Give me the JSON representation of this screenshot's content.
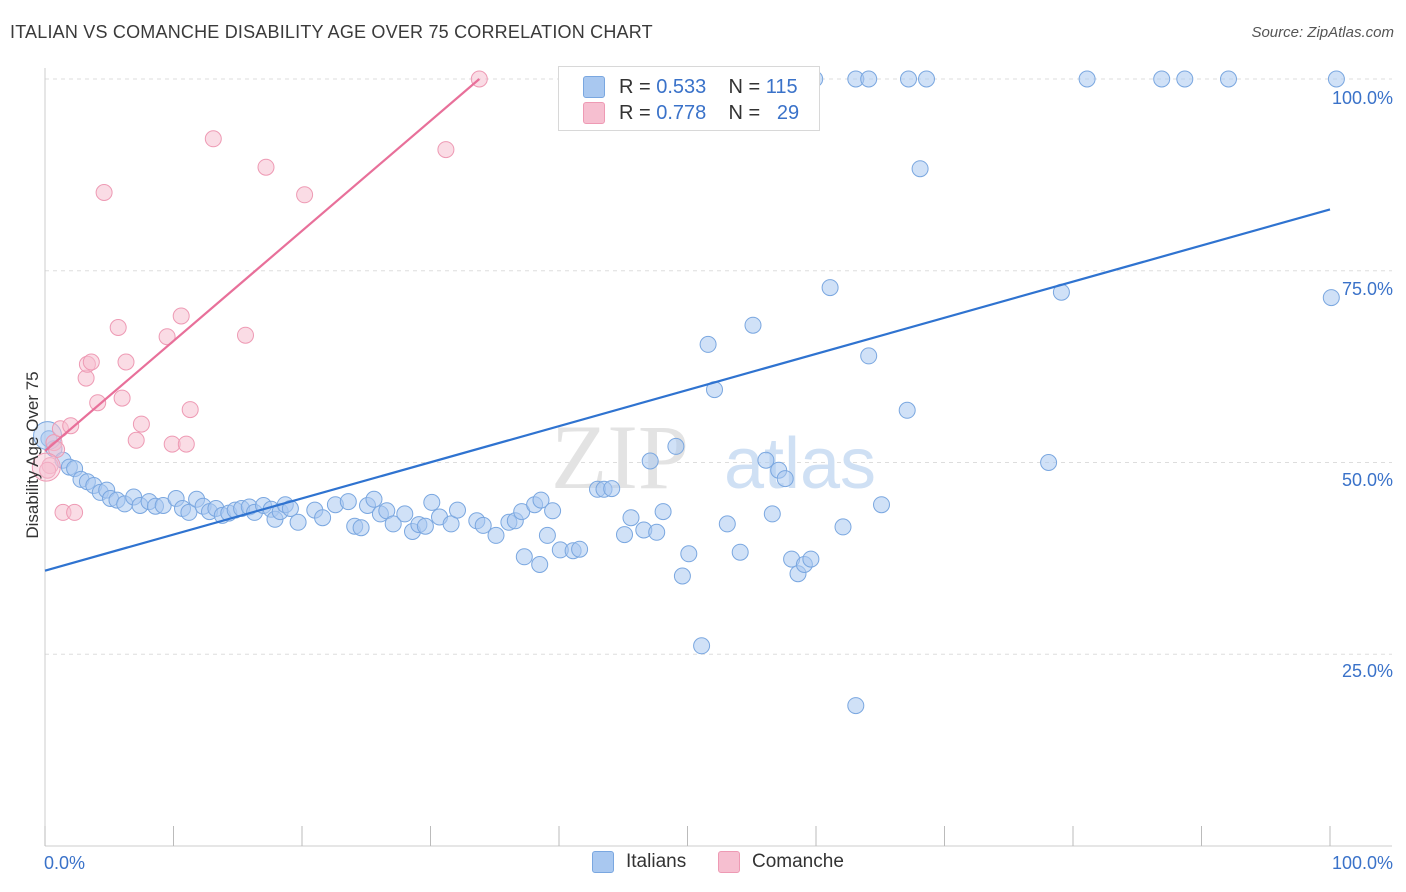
{
  "title": "ITALIAN VS COMANCHE DISABILITY AGE OVER 75 CORRELATION CHART",
  "source": "Source: ZipAtlas.com",
  "watermark": {
    "zip": "ZIP",
    "atlas": "atlas"
  },
  "legend": {
    "r_label": "R =",
    "n_label": "N =",
    "italians": {
      "r": "0.533",
      "n": "115"
    },
    "comanche": {
      "r": "0.778",
      "n": "29"
    }
  },
  "colors": {
    "italians_fill": "#a9c8f0",
    "italians_stroke": "#7aa7e0",
    "italians_line": "#2f73d0",
    "comanche_fill": "#f6bfd0",
    "comanche_stroke": "#ee9ab4",
    "comanche_line": "#e8709a",
    "tick_label": "#3a72c9",
    "grid": "#dddddd"
  },
  "chart_data": {
    "type": "scatter",
    "title": "ITALIAN VS COMANCHE DISABILITY AGE OVER 75 CORRELATION CHART",
    "xlabel": "",
    "ylabel": "Disability Age Over 75",
    "xlim": [
      0,
      100
    ],
    "ylim": [
      0,
      104
    ],
    "x_tick_labels": [
      "0.0%",
      "100.0%"
    ],
    "y_ticks": [
      25,
      50,
      75,
      100
    ],
    "y_tick_labels": [
      "25.0%",
      "50.0%",
      "75.0%",
      "100.0%"
    ],
    "grid": true,
    "legend_position": "bottom-center",
    "series": [
      {
        "name": "Italians",
        "trendline": {
          "x": [
            0,
            100
          ],
          "y": [
            35.9,
            83.0
          ]
        },
        "points": [
          [
            0.3,
            53.1
          ],
          [
            0.7,
            51.8
          ],
          [
            1.4,
            50.3
          ],
          [
            1.9,
            49.4
          ],
          [
            2.3,
            49.2
          ],
          [
            2.8,
            47.8
          ],
          [
            3.3,
            47.5
          ],
          [
            3.8,
            47.0
          ],
          [
            4.3,
            46.1
          ],
          [
            4.8,
            46.4
          ],
          [
            5.1,
            45.3
          ],
          [
            5.6,
            45.1
          ],
          [
            6.2,
            44.6
          ],
          [
            6.9,
            45.5
          ],
          [
            7.4,
            44.4
          ],
          [
            8.1,
            44.9
          ],
          [
            8.6,
            44.3
          ],
          [
            9.2,
            44.4
          ],
          [
            10.2,
            45.3
          ],
          [
            10.7,
            44.0
          ],
          [
            11.2,
            43.5
          ],
          [
            11.8,
            45.2
          ],
          [
            12.3,
            44.3
          ],
          [
            12.8,
            43.6
          ],
          [
            13.3,
            44.0
          ],
          [
            13.8,
            43.1
          ],
          [
            14.3,
            43.4
          ],
          [
            14.8,
            43.8
          ],
          [
            15.3,
            44.0
          ],
          [
            15.9,
            44.2
          ],
          [
            16.3,
            43.5
          ],
          [
            17.0,
            44.4
          ],
          [
            17.6,
            43.9
          ],
          [
            17.9,
            42.6
          ],
          [
            18.3,
            43.6
          ],
          [
            18.7,
            44.5
          ],
          [
            19.1,
            44.0
          ],
          [
            19.7,
            42.2
          ],
          [
            21.0,
            43.8
          ],
          [
            21.6,
            42.8
          ],
          [
            22.6,
            44.5
          ],
          [
            23.6,
            44.9
          ],
          [
            24.1,
            41.7
          ],
          [
            24.6,
            41.5
          ],
          [
            25.1,
            44.4
          ],
          [
            25.6,
            45.2
          ],
          [
            26.1,
            43.3
          ],
          [
            26.6,
            43.7
          ],
          [
            27.1,
            42.0
          ],
          [
            28.0,
            43.3
          ],
          [
            28.6,
            41.0
          ],
          [
            29.1,
            41.9
          ],
          [
            29.6,
            41.7
          ],
          [
            30.1,
            44.8
          ],
          [
            30.7,
            42.9
          ],
          [
            31.6,
            42.0
          ],
          [
            32.1,
            43.8
          ],
          [
            33.6,
            42.4
          ],
          [
            34.1,
            41.8
          ],
          [
            35.1,
            40.5
          ],
          [
            36.1,
            42.2
          ],
          [
            36.6,
            42.4
          ],
          [
            37.1,
            43.6
          ],
          [
            38.1,
            44.5
          ],
          [
            38.6,
            45.1
          ],
          [
            39.1,
            40.5
          ],
          [
            39.5,
            43.7
          ],
          [
            40.1,
            38.6
          ],
          [
            41.1,
            38.5
          ],
          [
            41.6,
            38.7
          ],
          [
            37.3,
            37.7
          ],
          [
            38.5,
            36.7
          ],
          [
            43.0,
            46.5
          ],
          [
            43.5,
            46.5
          ],
          [
            44.1,
            46.6
          ],
          [
            45.1,
            40.6
          ],
          [
            45.6,
            42.8
          ],
          [
            46.6,
            41.2
          ],
          [
            47.1,
            50.2
          ],
          [
            47.6,
            40.9
          ],
          [
            48.1,
            43.6
          ],
          [
            49.1,
            52.1
          ],
          [
            49.6,
            35.2
          ],
          [
            50.1,
            38.1
          ],
          [
            51.1,
            26.1
          ],
          [
            51.6,
            65.4
          ],
          [
            52.1,
            59.5
          ],
          [
            53.1,
            42.0
          ],
          [
            54.1,
            38.3
          ],
          [
            55.1,
            67.9
          ],
          [
            56.1,
            50.3
          ],
          [
            56.6,
            43.3
          ],
          [
            57.1,
            49.0
          ],
          [
            57.6,
            47.9
          ],
          [
            58.1,
            37.4
          ],
          [
            58.6,
            35.5
          ],
          [
            59.1,
            36.7
          ],
          [
            59.6,
            37.4
          ],
          [
            61.1,
            72.8
          ],
          [
            62.1,
            41.6
          ],
          [
            63.1,
            18.3
          ],
          [
            64.1,
            63.9
          ],
          [
            65.1,
            44.5
          ],
          [
            67.1,
            56.8
          ],
          [
            68.1,
            88.3
          ],
          [
            78.1,
            50.0
          ],
          [
            79.1,
            72.2
          ],
          [
            92.1,
            100.0
          ],
          [
            100.1,
            71.5
          ],
          [
            100.5,
            100.0
          ],
          [
            53.7,
            100.0
          ],
          [
            57.1,
            100.0
          ],
          [
            59.9,
            100.0
          ],
          [
            63.1,
            100.0
          ],
          [
            64.1,
            100.0
          ],
          [
            67.2,
            100.0
          ],
          [
            68.6,
            100.0
          ],
          [
            81.1,
            100.0
          ],
          [
            86.9,
            100.0
          ],
          [
            88.7,
            100.0
          ]
        ]
      },
      {
        "name": "Comanche",
        "trendline": {
          "x": [
            0,
            33.8
          ],
          "y": [
            51.5,
            100.0
          ]
        },
        "points": [
          [
            0.4,
            49.6
          ],
          [
            0.7,
            52.6
          ],
          [
            1.2,
            54.4
          ],
          [
            2.0,
            54.8
          ],
          [
            1.4,
            43.5
          ],
          [
            2.3,
            43.5
          ],
          [
            3.2,
            61.0
          ],
          [
            3.3,
            62.8
          ],
          [
            3.6,
            63.1
          ],
          [
            4.1,
            57.8
          ],
          [
            4.6,
            85.2
          ],
          [
            5.7,
            67.6
          ],
          [
            6.0,
            58.4
          ],
          [
            6.3,
            63.1
          ],
          [
            7.1,
            52.9
          ],
          [
            7.5,
            55.0
          ],
          [
            9.5,
            66.4
          ],
          [
            9.9,
            52.4
          ],
          [
            10.6,
            69.1
          ],
          [
            11.0,
            52.4
          ],
          [
            11.3,
            56.9
          ],
          [
            13.1,
            92.2
          ],
          [
            15.6,
            66.6
          ],
          [
            17.2,
            88.5
          ],
          [
            20.2,
            84.9
          ],
          [
            31.2,
            90.8
          ],
          [
            33.8,
            100.0
          ],
          [
            0.2,
            49.0
          ],
          [
            0.9,
            51.7
          ]
        ]
      }
    ]
  }
}
